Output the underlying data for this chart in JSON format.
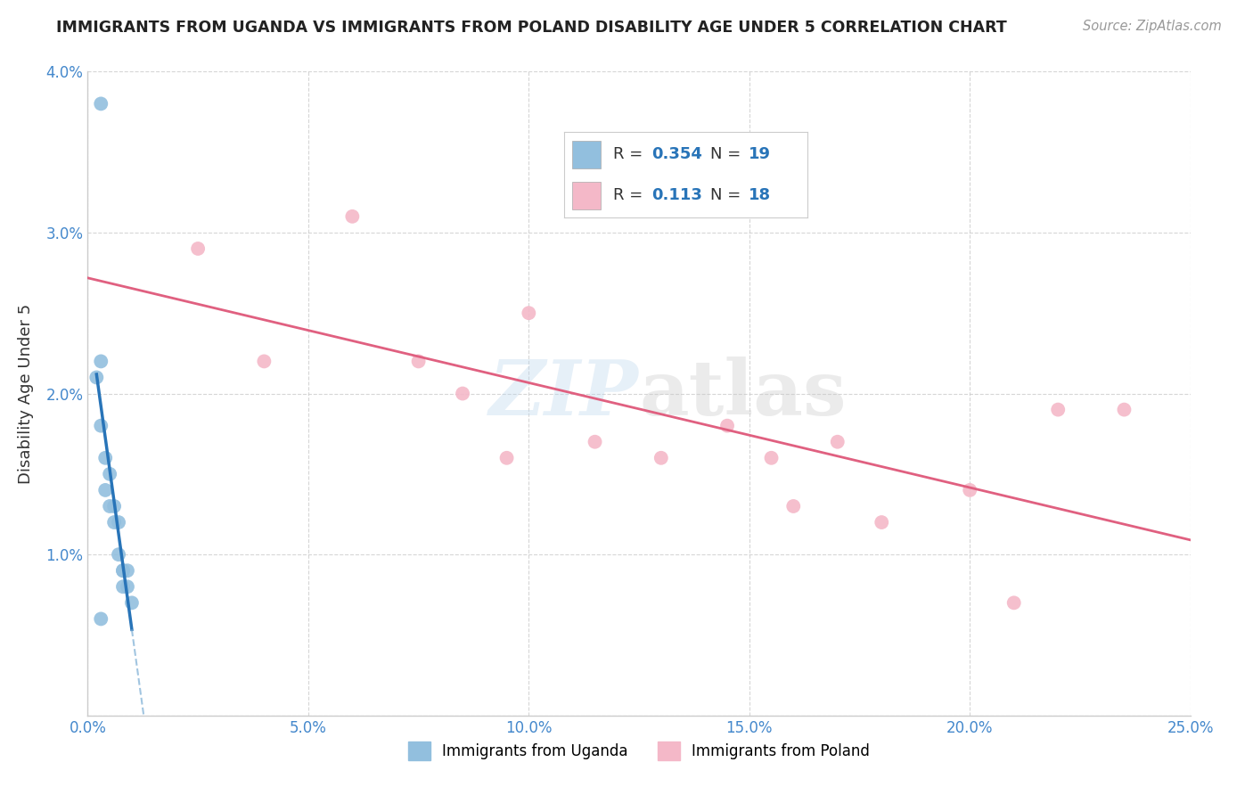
{
  "title": "IMMIGRANTS FROM UGANDA VS IMMIGRANTS FROM POLAND DISABILITY AGE UNDER 5 CORRELATION CHART",
  "source": "Source: ZipAtlas.com",
  "ylabel": "Disability Age Under 5",
  "xlim": [
    0.0,
    0.25
  ],
  "ylim": [
    0.0,
    0.04
  ],
  "xticks": [
    0.0,
    0.05,
    0.1,
    0.15,
    0.2,
    0.25
  ],
  "yticks": [
    0.0,
    0.01,
    0.02,
    0.03,
    0.04
  ],
  "xtick_labels": [
    "0.0%",
    "5.0%",
    "10.0%",
    "15.0%",
    "20.0%",
    "25.0%"
  ],
  "ytick_labels": [
    "",
    "1.0%",
    "2.0%",
    "3.0%",
    "4.0%"
  ],
  "uganda_color": "#92bfde",
  "poland_color": "#f4b8c8",
  "uganda_line_color": "#2874b8",
  "uganda_dash_color": "#7aadd4",
  "poland_line_color": "#e06080",
  "r_uganda": 0.354,
  "n_uganda": 19,
  "r_poland": 0.113,
  "n_poland": 18,
  "uganda_x": [
    0.003,
    0.003,
    0.002,
    0.003,
    0.004,
    0.004,
    0.005,
    0.005,
    0.006,
    0.006,
    0.007,
    0.007,
    0.008,
    0.008,
    0.008,
    0.009,
    0.009,
    0.01,
    0.003
  ],
  "uganda_y": [
    0.038,
    0.022,
    0.021,
    0.018,
    0.016,
    0.014,
    0.015,
    0.013,
    0.013,
    0.012,
    0.012,
    0.01,
    0.009,
    0.009,
    0.008,
    0.009,
    0.008,
    0.007,
    0.006
  ],
  "poland_x": [
    0.025,
    0.04,
    0.06,
    0.075,
    0.085,
    0.095,
    0.1,
    0.115,
    0.13,
    0.145,
    0.155,
    0.16,
    0.17,
    0.18,
    0.2,
    0.21,
    0.22,
    0.235
  ],
  "poland_y": [
    0.029,
    0.022,
    0.031,
    0.022,
    0.02,
    0.016,
    0.025,
    0.017,
    0.016,
    0.018,
    0.016,
    0.013,
    0.017,
    0.012,
    0.014,
    0.007,
    0.019,
    0.019
  ],
  "watermark_zip": "ZIP",
  "watermark_atlas": "atlas",
  "background_color": "#ffffff",
  "grid_color": "#cccccc",
  "legend_label_uganda": "Immigrants from Uganda",
  "legend_label_poland": "Immigrants from Poland"
}
